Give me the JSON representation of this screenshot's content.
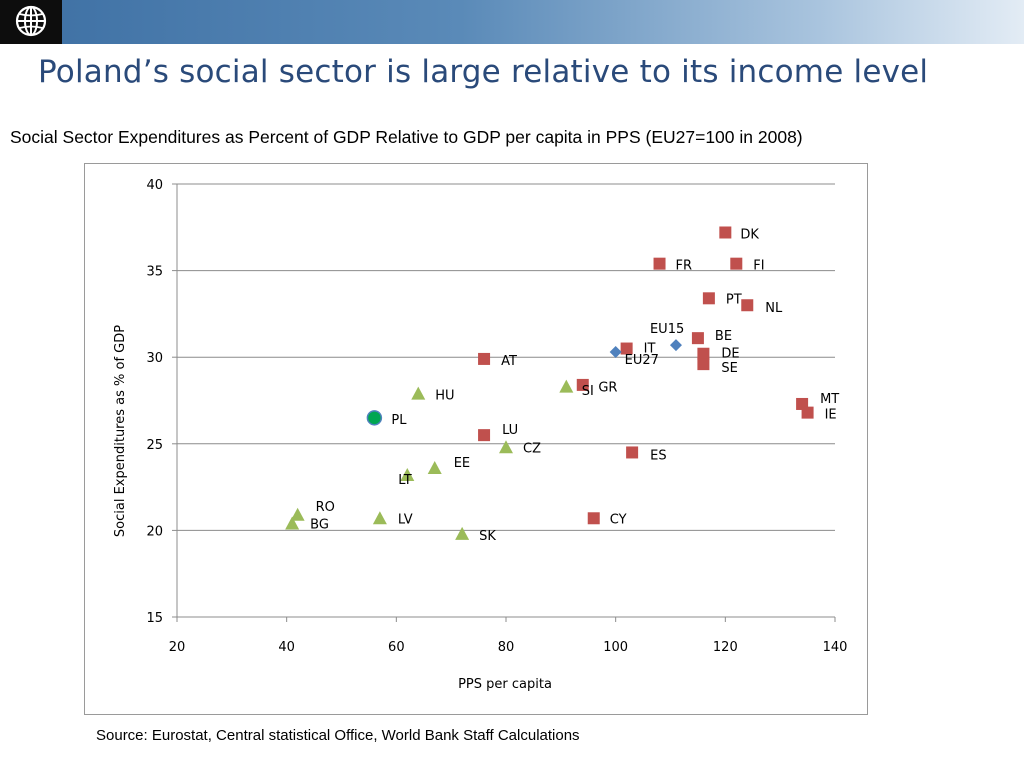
{
  "header": {
    "title": "Poland’s social sector is large relative to its income level",
    "logo_icon": "globe-icon"
  },
  "subtitle": "Social Sector Expenditures as Percent of GDP Relative to GDP per capita in PPS (EU27=100 in 2008)",
  "source": "Source: Eurostat, Central statistical Office, World Bank Staff Calculations",
  "chart_data": {
    "type": "scatter",
    "xlabel": "PPS per capita",
    "ylabel": "Social Expenditures as % of GDP",
    "xlim": [
      20,
      140
    ],
    "ylim": [
      15,
      40
    ],
    "x_ticks": [
      20,
      40,
      60,
      80,
      100,
      120,
      140
    ],
    "y_ticks": [
      15,
      20,
      25,
      30,
      35,
      40
    ],
    "grid": "horizontal",
    "legend": "none",
    "colors": {
      "square": "#c0504d",
      "triangle": "#9bbb59",
      "diamond": "#4f81bd",
      "circle": "#00a651"
    },
    "points": [
      {
        "label": "DK",
        "x": 120,
        "y": 37.2,
        "shape": "square"
      },
      {
        "label": "FR",
        "x": 108,
        "y": 35.4,
        "shape": "square"
      },
      {
        "label": "FI",
        "x": 122,
        "y": 35.4,
        "shape": "square"
      },
      {
        "label": "PT",
        "x": 117,
        "y": 33.4,
        "shape": "square"
      },
      {
        "label": "NL",
        "x": 124,
        "y": 33.0,
        "shape": "square"
      },
      {
        "label": "BE",
        "x": 115,
        "y": 31.1,
        "shape": "square"
      },
      {
        "label": "IT",
        "x": 102,
        "y": 30.5,
        "shape": "square"
      },
      {
        "label": "DE",
        "x": 116,
        "y": 30.2,
        "shape": "square"
      },
      {
        "label": "SE",
        "x": 116,
        "y": 29.6,
        "shape": "square"
      },
      {
        "label": "AT",
        "x": 76,
        "y": 29.9,
        "shape": "square"
      },
      {
        "label": "SI",
        "x": 94,
        "y": 28.4,
        "shape": "square"
      },
      {
        "label": "MT",
        "x": 134,
        "y": 27.3,
        "shape": "square"
      },
      {
        "label": "IE",
        "x": 135,
        "y": 26.8,
        "shape": "square"
      },
      {
        "label": "LU",
        "x": 76,
        "y": 25.5,
        "shape": "square"
      },
      {
        "label": "ES",
        "x": 103,
        "y": 24.5,
        "shape": "square"
      },
      {
        "label": "CY",
        "x": 96,
        "y": 20.7,
        "shape": "square"
      },
      {
        "label": "EU15",
        "x": 111,
        "y": 30.7,
        "shape": "diamond"
      },
      {
        "label": "EU27",
        "x": 100,
        "y": 30.3,
        "shape": "diamond"
      },
      {
        "label": "GR",
        "x": 91,
        "y": 28.3,
        "shape": "triangle"
      },
      {
        "label": "HU",
        "x": 64,
        "y": 27.9,
        "shape": "triangle"
      },
      {
        "label": "CZ",
        "x": 80,
        "y": 24.8,
        "shape": "triangle"
      },
      {
        "label": "EE",
        "x": 67,
        "y": 23.6,
        "shape": "triangle"
      },
      {
        "label": "LT",
        "x": 62,
        "y": 23.2,
        "shape": "triangle"
      },
      {
        "label": "RO",
        "x": 42,
        "y": 20.9,
        "shape": "triangle"
      },
      {
        "label": "BG",
        "x": 41,
        "y": 20.4,
        "shape": "triangle"
      },
      {
        "label": "LV",
        "x": 57,
        "y": 20.7,
        "shape": "triangle"
      },
      {
        "label": "SK",
        "x": 72,
        "y": 19.8,
        "shape": "triangle"
      },
      {
        "label": "PL",
        "x": 56,
        "y": 26.5,
        "shape": "circle"
      }
    ]
  }
}
